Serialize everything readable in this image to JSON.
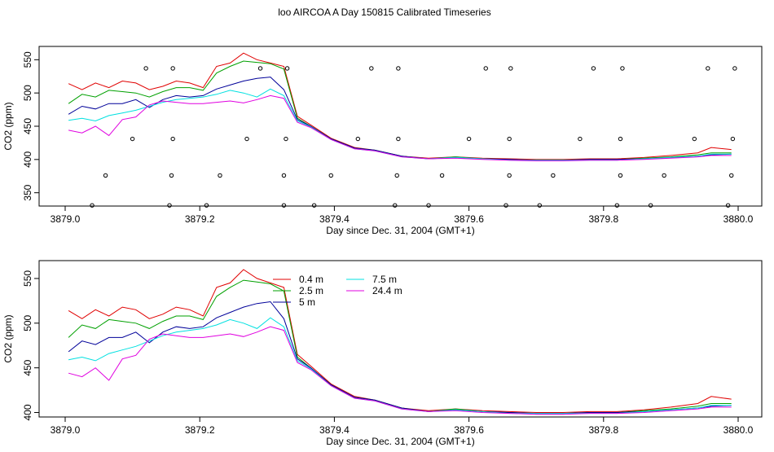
{
  "page_title": "loo AIRCOA A  Day 150815  Calibrated Timeseries",
  "chart_data": [
    {
      "type": "line",
      "title": "",
      "xlabel": "Day since Dec. 31, 2004 (GMT+1)",
      "ylabel": "CO2 (ppm)",
      "xlim": [
        3879.0,
        3880.0
      ],
      "ylim": [
        330,
        570
      ],
      "x_ticks": [
        3879.0,
        3879.2,
        3879.4,
        3879.6,
        3879.8,
        3880.0
      ],
      "x_tick_labels": [
        "3879.0",
        "3879.2",
        "3879.4",
        "3879.6",
        "3879.8",
        "3880.0"
      ],
      "y_ticks": [
        350,
        400,
        450,
        500,
        550
      ],
      "y_tick_labels": [
        "350",
        "400",
        "450",
        "500",
        "550"
      ],
      "grid": false,
      "series": [
        {
          "color": "#e00000",
          "x": [
            3879.005,
            3879.025,
            3879.045,
            3879.065,
            3879.085,
            3879.105,
            3879.125,
            3879.145,
            3879.165,
            3879.185,
            3879.205,
            3879.225,
            3879.245,
            3879.265,
            3879.285,
            3879.305,
            3879.325,
            3879.345,
            3879.365,
            3879.395,
            3879.43,
            3879.46,
            3879.5,
            3879.54,
            3879.58,
            3879.62,
            3879.66,
            3879.7,
            3879.74,
            3879.78,
            3879.82,
            3879.86,
            3879.9,
            3879.94,
            3879.96,
            3879.99
          ],
          "y": [
            514,
            505,
            515,
            508,
            518,
            515,
            505,
            510,
            518,
            515,
            508,
            540,
            545,
            560,
            550,
            545,
            540,
            465,
            452,
            432,
            418,
            414,
            405,
            402,
            404,
            402,
            401,
            400,
            400,
            401,
            401,
            403,
            406,
            410,
            418,
            415
          ]
        },
        {
          "color": "#00a000",
          "x": [
            3879.005,
            3879.025,
            3879.045,
            3879.065,
            3879.085,
            3879.105,
            3879.125,
            3879.145,
            3879.165,
            3879.185,
            3879.205,
            3879.225,
            3879.245,
            3879.265,
            3879.285,
            3879.305,
            3879.325,
            3879.345,
            3879.365,
            3879.395,
            3879.43,
            3879.46,
            3879.5,
            3879.54,
            3879.58,
            3879.62,
            3879.66,
            3879.7,
            3879.74,
            3879.78,
            3879.82,
            3879.86,
            3879.9,
            3879.94,
            3879.96,
            3879.99
          ],
          "y": [
            484,
            498,
            494,
            504,
            502,
            500,
            494,
            502,
            508,
            508,
            504,
            530,
            540,
            548,
            546,
            544,
            536,
            462,
            450,
            431,
            417,
            414,
            405,
            401,
            404,
            401,
            400,
            399,
            399,
            400,
            400,
            402,
            404,
            407,
            410,
            410
          ]
        },
        {
          "color": "#000099",
          "x": [
            3879.005,
            3879.025,
            3879.045,
            3879.065,
            3879.085,
            3879.105,
            3879.125,
            3879.145,
            3879.165,
            3879.185,
            3879.205,
            3879.225,
            3879.245,
            3879.265,
            3879.285,
            3879.305,
            3879.325,
            3879.345,
            3879.365,
            3879.395,
            3879.43,
            3879.46,
            3879.5,
            3879.54,
            3879.58,
            3879.62,
            3879.66,
            3879.7,
            3879.74,
            3879.78,
            3879.82,
            3879.86,
            3879.9,
            3879.94,
            3879.96,
            3879.99
          ],
          "y": [
            468,
            480,
            476,
            484,
            484,
            490,
            478,
            490,
            496,
            494,
            496,
            506,
            512,
            518,
            522,
            524,
            505,
            460,
            450,
            431,
            417,
            414,
            405,
            401,
            403,
            401,
            400,
            399,
            399,
            400,
            400,
            401,
            403,
            405,
            407,
            408
          ]
        },
        {
          "color": "#00e0e0",
          "x": [
            3879.005,
            3879.025,
            3879.045,
            3879.065,
            3879.085,
            3879.105,
            3879.125,
            3879.145,
            3879.165,
            3879.185,
            3879.205,
            3879.225,
            3879.245,
            3879.265,
            3879.285,
            3879.305,
            3879.325,
            3879.345,
            3879.365,
            3879.395,
            3879.43,
            3879.46,
            3879.5,
            3879.54,
            3879.58,
            3879.62,
            3879.66,
            3879.7,
            3879.74,
            3879.78,
            3879.82,
            3879.86,
            3879.9,
            3879.94,
            3879.96,
            3879.99
          ],
          "y": [
            459,
            462,
            458,
            466,
            470,
            474,
            480,
            486,
            490,
            492,
            494,
            498,
            504,
            500,
            494,
            506,
            496,
            458,
            449,
            430,
            416,
            413,
            404,
            401,
            403,
            401,
            399,
            399,
            399,
            399,
            399,
            401,
            403,
            405,
            408,
            408
          ]
        },
        {
          "color": "#e000e0",
          "x": [
            3879.005,
            3879.025,
            3879.045,
            3879.065,
            3879.085,
            3879.105,
            3879.125,
            3879.145,
            3879.165,
            3879.185,
            3879.205,
            3879.225,
            3879.245,
            3879.265,
            3879.285,
            3879.305,
            3879.325,
            3879.345,
            3879.365,
            3879.395,
            3879.43,
            3879.46,
            3879.5,
            3879.54,
            3879.58,
            3879.62,
            3879.66,
            3879.7,
            3879.74,
            3879.78,
            3879.82,
            3879.86,
            3879.9,
            3879.94,
            3879.96,
            3879.99
          ],
          "y": [
            444,
            440,
            450,
            436,
            460,
            464,
            482,
            488,
            486,
            484,
            484,
            486,
            488,
            485,
            490,
            496,
            492,
            456,
            448,
            430,
            416,
            413,
            404,
            401,
            402,
            400,
            399,
            398,
            398,
            399,
            399,
            400,
            402,
            404,
            406,
            406
          ]
        }
      ],
      "points": {
        "x": [
          3879.04,
          3879.06,
          3879.1,
          3879.12,
          3879.155,
          3879.158,
          3879.16,
          3879.16,
          3879.21,
          3879.23,
          3879.27,
          3879.29,
          3879.325,
          3879.325,
          3879.328,
          3879.33,
          3879.37,
          3879.395,
          3879.435,
          3879.455,
          3879.49,
          3879.493,
          3879.495,
          3879.495,
          3879.54,
          3879.56,
          3879.6,
          3879.625,
          3879.655,
          3879.66,
          3879.66,
          3879.662,
          3879.705,
          3879.725,
          3879.765,
          3879.785,
          3879.82,
          3879.825,
          3879.825,
          3879.828,
          3879.87,
          3879.89,
          3879.935,
          3879.955,
          3879.985,
          3879.99,
          3879.992,
          3879.995
        ],
        "y": [
          331,
          376,
          431,
          537,
          331,
          376,
          431,
          537,
          331,
          376,
          431,
          537,
          331,
          376,
          431,
          537,
          331,
          376,
          431,
          537,
          331,
          376,
          431,
          537,
          331,
          376,
          431,
          537,
          331,
          376,
          431,
          537,
          331,
          376,
          431,
          537,
          331,
          376,
          431,
          537,
          331,
          376,
          431,
          537,
          331,
          376,
          431,
          537
        ]
      }
    },
    {
      "type": "line",
      "title": "",
      "xlabel": "Day since Dec. 31, 2004 (GMT+1)",
      "ylabel": "CO2 (ppm)",
      "xlim": [
        3879.0,
        3880.0
      ],
      "ylim": [
        395,
        570
      ],
      "x_ticks": [
        3879.0,
        3879.2,
        3879.4,
        3879.6,
        3879.8,
        3880.0
      ],
      "x_tick_labels": [
        "3879.0",
        "3879.2",
        "3879.4",
        "3879.6",
        "3879.8",
        "3880.0"
      ],
      "y_ticks": [
        400,
        450,
        500,
        550
      ],
      "y_tick_labels": [
        "400",
        "450",
        "500",
        "550"
      ],
      "grid": false,
      "legend": {
        "placement": "top-center",
        "entries": [
          {
            "label": "0.4 m",
            "color": "#e00000"
          },
          {
            "label": "2.5 m",
            "color": "#00a000"
          },
          {
            "label": "5 m",
            "color": "#000099"
          },
          {
            "label": "7.5 m",
            "color": "#00e0e0"
          },
          {
            "label": "24.4 m",
            "color": "#e000e0"
          }
        ]
      },
      "series": [
        {
          "name": "0.4 m",
          "color": "#e00000",
          "x": [
            3879.005,
            3879.025,
            3879.045,
            3879.065,
            3879.085,
            3879.105,
            3879.125,
            3879.145,
            3879.165,
            3879.185,
            3879.205,
            3879.225,
            3879.245,
            3879.265,
            3879.285,
            3879.305,
            3879.325,
            3879.345,
            3879.365,
            3879.395,
            3879.43,
            3879.46,
            3879.5,
            3879.54,
            3879.58,
            3879.62,
            3879.66,
            3879.7,
            3879.74,
            3879.78,
            3879.82,
            3879.86,
            3879.9,
            3879.94,
            3879.96,
            3879.99
          ],
          "y": [
            514,
            505,
            515,
            508,
            518,
            515,
            505,
            510,
            518,
            515,
            508,
            540,
            545,
            560,
            550,
            545,
            540,
            465,
            452,
            432,
            418,
            414,
            405,
            402,
            404,
            402,
            401,
            400,
            400,
            401,
            401,
            403,
            406,
            410,
            418,
            415
          ]
        },
        {
          "name": "2.5 m",
          "color": "#00a000",
          "x": [
            3879.005,
            3879.025,
            3879.045,
            3879.065,
            3879.085,
            3879.105,
            3879.125,
            3879.145,
            3879.165,
            3879.185,
            3879.205,
            3879.225,
            3879.245,
            3879.265,
            3879.285,
            3879.305,
            3879.325,
            3879.345,
            3879.365,
            3879.395,
            3879.43,
            3879.46,
            3879.5,
            3879.54,
            3879.58,
            3879.62,
            3879.66,
            3879.7,
            3879.74,
            3879.78,
            3879.82,
            3879.86,
            3879.9,
            3879.94,
            3879.96,
            3879.99
          ],
          "y": [
            484,
            498,
            494,
            504,
            502,
            500,
            494,
            502,
            508,
            508,
            504,
            530,
            540,
            548,
            546,
            544,
            536,
            462,
            450,
            431,
            417,
            414,
            405,
            401,
            404,
            401,
            400,
            399,
            399,
            400,
            400,
            402,
            404,
            407,
            410,
            410
          ]
        },
        {
          "name": "5 m",
          "color": "#000099",
          "x": [
            3879.005,
            3879.025,
            3879.045,
            3879.065,
            3879.085,
            3879.105,
            3879.125,
            3879.145,
            3879.165,
            3879.185,
            3879.205,
            3879.225,
            3879.245,
            3879.265,
            3879.285,
            3879.305,
            3879.325,
            3879.345,
            3879.365,
            3879.395,
            3879.43,
            3879.46,
            3879.5,
            3879.54,
            3879.58,
            3879.62,
            3879.66,
            3879.7,
            3879.74,
            3879.78,
            3879.82,
            3879.86,
            3879.9,
            3879.94,
            3879.96,
            3879.99
          ],
          "y": [
            468,
            480,
            476,
            484,
            484,
            490,
            478,
            490,
            496,
            494,
            496,
            506,
            512,
            518,
            522,
            524,
            505,
            460,
            450,
            431,
            417,
            414,
            405,
            401,
            403,
            401,
            400,
            399,
            399,
            400,
            400,
            401,
            403,
            405,
            407,
            408
          ]
        },
        {
          "name": "7.5 m",
          "color": "#00e0e0",
          "x": [
            3879.005,
            3879.025,
            3879.045,
            3879.065,
            3879.085,
            3879.105,
            3879.125,
            3879.145,
            3879.165,
            3879.185,
            3879.205,
            3879.225,
            3879.245,
            3879.265,
            3879.285,
            3879.305,
            3879.325,
            3879.345,
            3879.365,
            3879.395,
            3879.43,
            3879.46,
            3879.5,
            3879.54,
            3879.58,
            3879.62,
            3879.66,
            3879.7,
            3879.74,
            3879.78,
            3879.82,
            3879.86,
            3879.9,
            3879.94,
            3879.96,
            3879.99
          ],
          "y": [
            459,
            462,
            458,
            466,
            470,
            474,
            480,
            486,
            490,
            492,
            494,
            498,
            504,
            500,
            494,
            506,
            496,
            458,
            449,
            430,
            416,
            413,
            404,
            401,
            403,
            401,
            399,
            399,
            399,
            399,
            399,
            401,
            403,
            405,
            408,
            408
          ]
        },
        {
          "name": "24.4 m",
          "color": "#e000e0",
          "x": [
            3879.005,
            3879.025,
            3879.045,
            3879.065,
            3879.085,
            3879.105,
            3879.125,
            3879.145,
            3879.165,
            3879.185,
            3879.205,
            3879.225,
            3879.245,
            3879.265,
            3879.285,
            3879.305,
            3879.325,
            3879.345,
            3879.365,
            3879.395,
            3879.43,
            3879.46,
            3879.5,
            3879.54,
            3879.58,
            3879.62,
            3879.66,
            3879.7,
            3879.74,
            3879.78,
            3879.82,
            3879.86,
            3879.9,
            3879.94,
            3879.96,
            3879.99
          ],
          "y": [
            444,
            440,
            450,
            436,
            460,
            464,
            482,
            488,
            486,
            484,
            484,
            486,
            488,
            485,
            490,
            496,
            492,
            456,
            448,
            430,
            416,
            413,
            404,
            401,
            402,
            400,
            399,
            398,
            398,
            399,
            399,
            400,
            402,
            404,
            406,
            406
          ]
        }
      ]
    }
  ]
}
